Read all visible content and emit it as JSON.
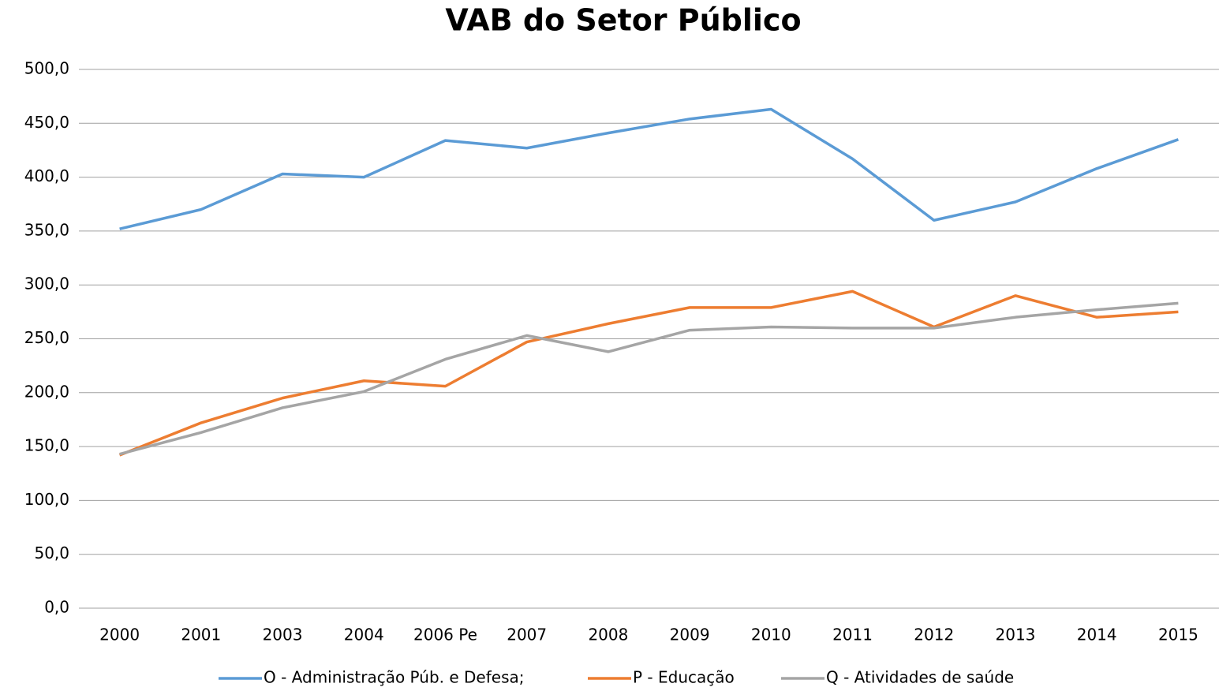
{
  "chart_data": {
    "type": "line",
    "title": "VAB do Setor Público",
    "categories": [
      "2000",
      "2001",
      "2003",
      "2004",
      "2006 Pe",
      "2007",
      "2008",
      "2009",
      "2010",
      "2011",
      "2012",
      "2013",
      "2014",
      "2015"
    ],
    "series": [
      {
        "name": "O - Administração Púb. e Defesa;",
        "color": "#5b9bd5",
        "values": [
          352,
          370,
          403,
          400,
          434,
          427,
          441,
          454,
          463,
          417,
          360,
          377,
          408,
          435
        ]
      },
      {
        "name": "P - Educação",
        "color": "#ed7d31",
        "values": [
          142,
          172,
          195,
          211,
          206,
          247,
          264,
          279,
          279,
          294,
          261,
          290,
          270,
          275
        ]
      },
      {
        "name": "Q - Atividades de saúde",
        "color": "#a5a5a5",
        "values": [
          143,
          163,
          186,
          201,
          231,
          253,
          238,
          258,
          261,
          260,
          260,
          270,
          277,
          283
        ]
      }
    ],
    "ylim": [
      0,
      500
    ],
    "yticks": [
      {
        "value": 0,
        "label": "0,0"
      },
      {
        "value": 50,
        "label": "50,0"
      },
      {
        "value": 100,
        "label": "100,0"
      },
      {
        "value": 150,
        "label": "150,0"
      },
      {
        "value": 200,
        "label": "200,0"
      },
      {
        "value": 250,
        "label": "250,0"
      },
      {
        "value": 300,
        "label": "300,0"
      },
      {
        "value": 350,
        "label": "350,0"
      },
      {
        "value": 400,
        "label": "400,0"
      },
      {
        "value": 450,
        "label": "450,0"
      },
      {
        "value": 500,
        "label": "500,0"
      }
    ],
    "grid": true,
    "legend": "bottom"
  }
}
